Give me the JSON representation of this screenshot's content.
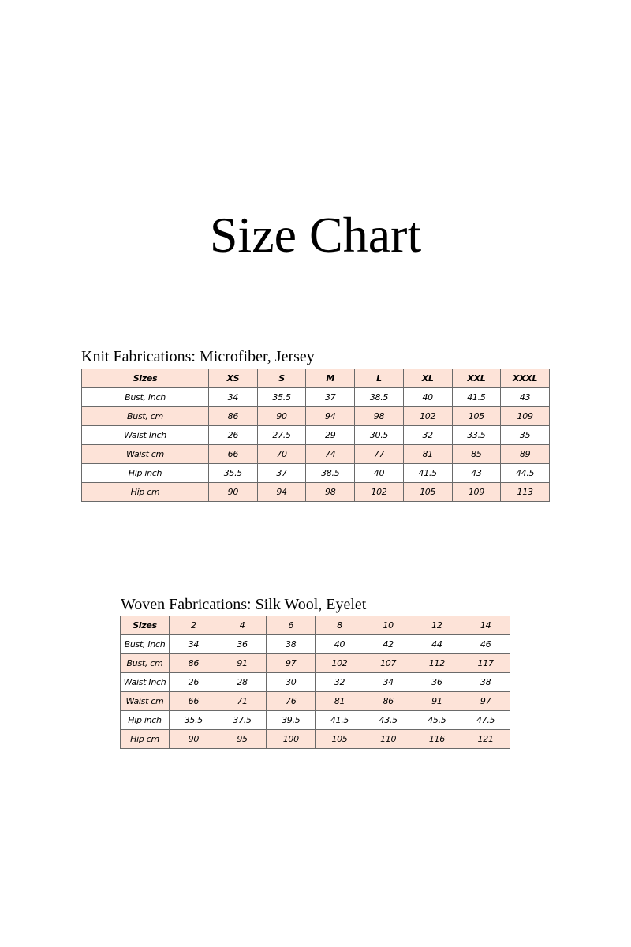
{
  "title": "Size Chart",
  "accent_color": "#fde3d8",
  "knit": {
    "caption": "Knit Fabrications: Microfiber, Jersey",
    "header": [
      "Sizes",
      "XS",
      "S",
      "M",
      "L",
      "XL",
      "XXL",
      "XXXL"
    ],
    "rows": [
      [
        "Bust, Inch",
        "34",
        "35.5",
        "37",
        "38.5",
        "40",
        "41.5",
        "43"
      ],
      [
        "Bust, cm",
        "86",
        "90",
        "94",
        "98",
        "102",
        "105",
        "109"
      ],
      [
        "Waist Inch",
        "26",
        "27.5",
        "29",
        "30.5",
        "32",
        "33.5",
        "35"
      ],
      [
        "Waist cm",
        "66",
        "70",
        "74",
        "77",
        "81",
        "85",
        "89"
      ],
      [
        "Hip inch",
        "35.5",
        "37",
        "38.5",
        "40",
        "41.5",
        "43",
        "44.5"
      ],
      [
        "Hip cm",
        "90",
        "94",
        "98",
        "102",
        "105",
        "109",
        "113"
      ]
    ]
  },
  "woven": {
    "caption": "Woven Fabrications: Silk Wool, Eyelet",
    "header": [
      "Sizes",
      "2",
      "4",
      "6",
      "8",
      "10",
      "12",
      "14"
    ],
    "rows": [
      [
        "Bust, Inch",
        "34",
        "36",
        "38",
        "40",
        "42",
        "44",
        "46"
      ],
      [
        "Bust, cm",
        "86",
        "91",
        "97",
        "102",
        "107",
        "112",
        "117"
      ],
      [
        "Waist Inch",
        "26",
        "28",
        "30",
        "32",
        "34",
        "36",
        "38"
      ],
      [
        "Waist cm",
        "66",
        "71",
        "76",
        "81",
        "86",
        "91",
        "97"
      ],
      [
        "Hip inch",
        "35.5",
        "37.5",
        "39.5",
        "41.5",
        "43.5",
        "45.5",
        "47.5"
      ],
      [
        "Hip cm",
        "90",
        "95",
        "100",
        "105",
        "110",
        "116",
        "121"
      ]
    ]
  }
}
